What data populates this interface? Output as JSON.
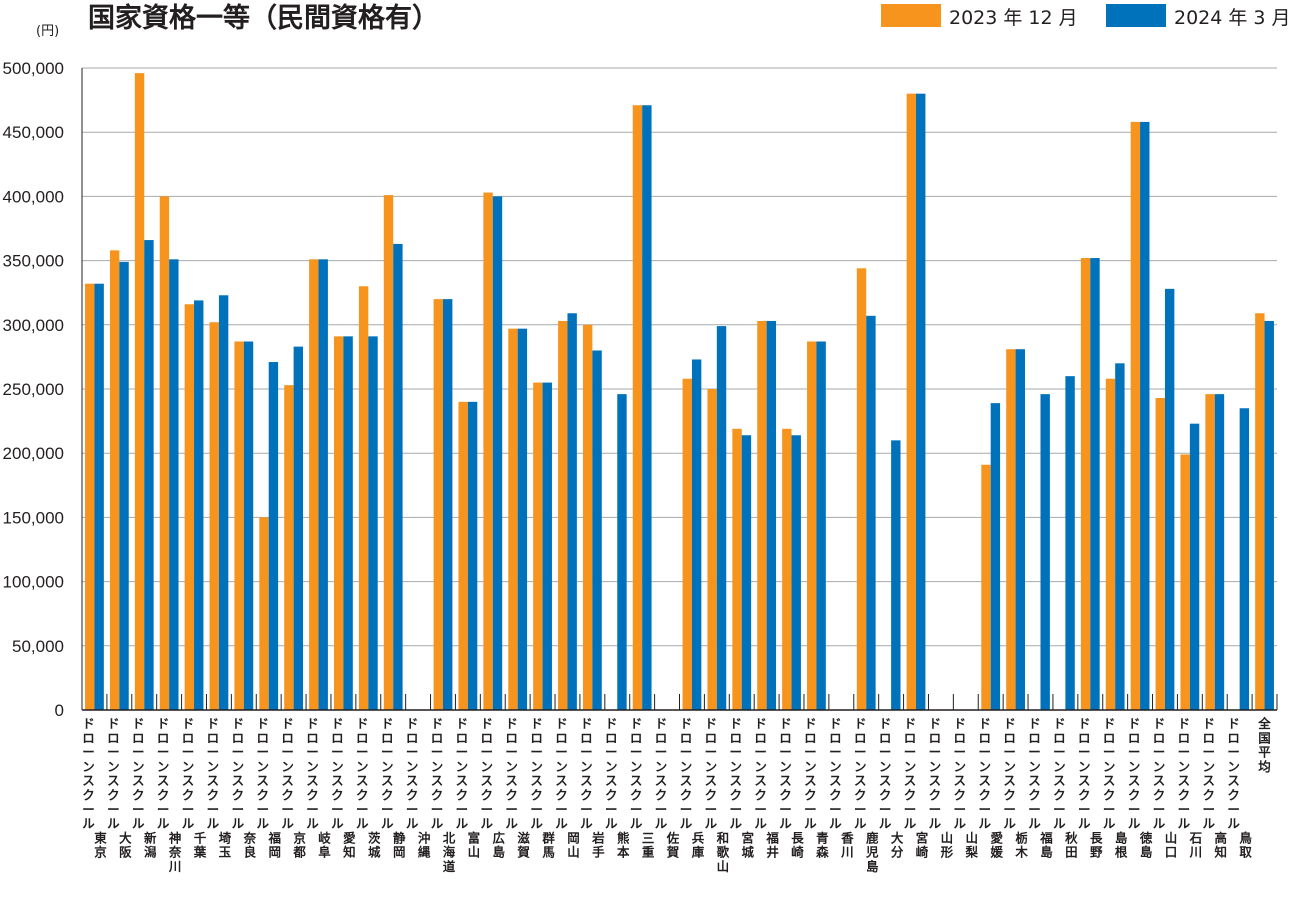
{
  "chart_data": {
    "type": "bar",
    "title": "国家資格一等（民間資格有）",
    "unit_label": "(円)",
    "ylim": [
      0,
      500000
    ],
    "yticks": [
      0,
      50000,
      100000,
      150000,
      200000,
      250000,
      300000,
      350000,
      400000,
      450000,
      500000
    ],
    "ytick_labels": [
      "0",
      "50,000",
      "100,000",
      "150,000",
      "200,000",
      "250,000",
      "300,000",
      "350,000",
      "400,000",
      "450,000",
      "500,000"
    ],
    "grid": true,
    "legend_position": "top-right",
    "categories": [
      "ドローンスクール東京",
      "ドローンスクール大阪",
      "ドローンスクール新潟",
      "ドローンスクール神奈川",
      "ドローンスクール千葉",
      "ドローンスクール埼玉",
      "ドローンスクール奈良",
      "ドローンスクール福岡",
      "ドローンスクール京都",
      "ドローンスクール岐阜",
      "ドローンスクール愛知",
      "ドローンスクール茨城",
      "ドローンスクール静岡",
      "ドローンスクール沖縄",
      "ドローンスクール北海道",
      "ドローンスクール富山",
      "ドローンスクール広島",
      "ドローンスクール滋賀",
      "ドローンスクール群馬",
      "ドローンスクール岡山",
      "ドローンスクール岩手",
      "ドローンスクール熊本",
      "ドローンスクール三重",
      "ドローンスクール佐賀",
      "ドローンスクール兵庫",
      "ドローンスクール和歌山",
      "ドローンスクール宮城",
      "ドローンスクール福井",
      "ドローンスクール長崎",
      "ドローンスクール青森",
      "ドローンスクール香川",
      "ドローンスクール鹿児島",
      "ドローンスクール大分",
      "ドローンスクール宮崎",
      "ドローンスクール山形",
      "ドローンスクール山梨",
      "ドローンスクール愛媛",
      "ドローンスクール栃木",
      "ドローンスクール福島",
      "ドローンスクール秋田",
      "ドローンスクール長野",
      "ドローンスクール島根",
      "ドローンスクール徳島",
      "ドローンスクール山口",
      "ドローンスクール石川",
      "ドローンスクール高知",
      "ドローンスクール鳥取",
      "全国平均"
    ],
    "series": [
      {
        "name": "2023 年 12 月",
        "color": "#f7941d",
        "values": [
          332000,
          358000,
          496000,
          400000,
          316000,
          302000,
          287000,
          150000,
          253000,
          351000,
          291000,
          330000,
          401000,
          0,
          320000,
          240000,
          403000,
          297000,
          255000,
          303000,
          300000,
          0,
          471000,
          0,
          258000,
          250000,
          219000,
          303000,
          219000,
          287000,
          0,
          344000,
          0,
          480000,
          0,
          0,
          191000,
          281000,
          0,
          0,
          352000,
          258000,
          458000,
          243000,
          199000,
          246000,
          0,
          309000
        ]
      },
      {
        "name": "2024 年 3 月",
        "color": "#0072bc",
        "values": [
          332000,
          349000,
          366000,
          351000,
          319000,
          323000,
          287000,
          271000,
          283000,
          351000,
          291000,
          291000,
          363000,
          0,
          320000,
          240000,
          400000,
          297000,
          255000,
          309000,
          280000,
          246000,
          471000,
          0,
          273000,
          299000,
          214000,
          303000,
          214000,
          287000,
          0,
          307000,
          210000,
          480000,
          0,
          0,
          239000,
          281000,
          246000,
          260000,
          352000,
          270000,
          458000,
          328000,
          223000,
          246000,
          235000,
          303000
        ]
      }
    ]
  }
}
